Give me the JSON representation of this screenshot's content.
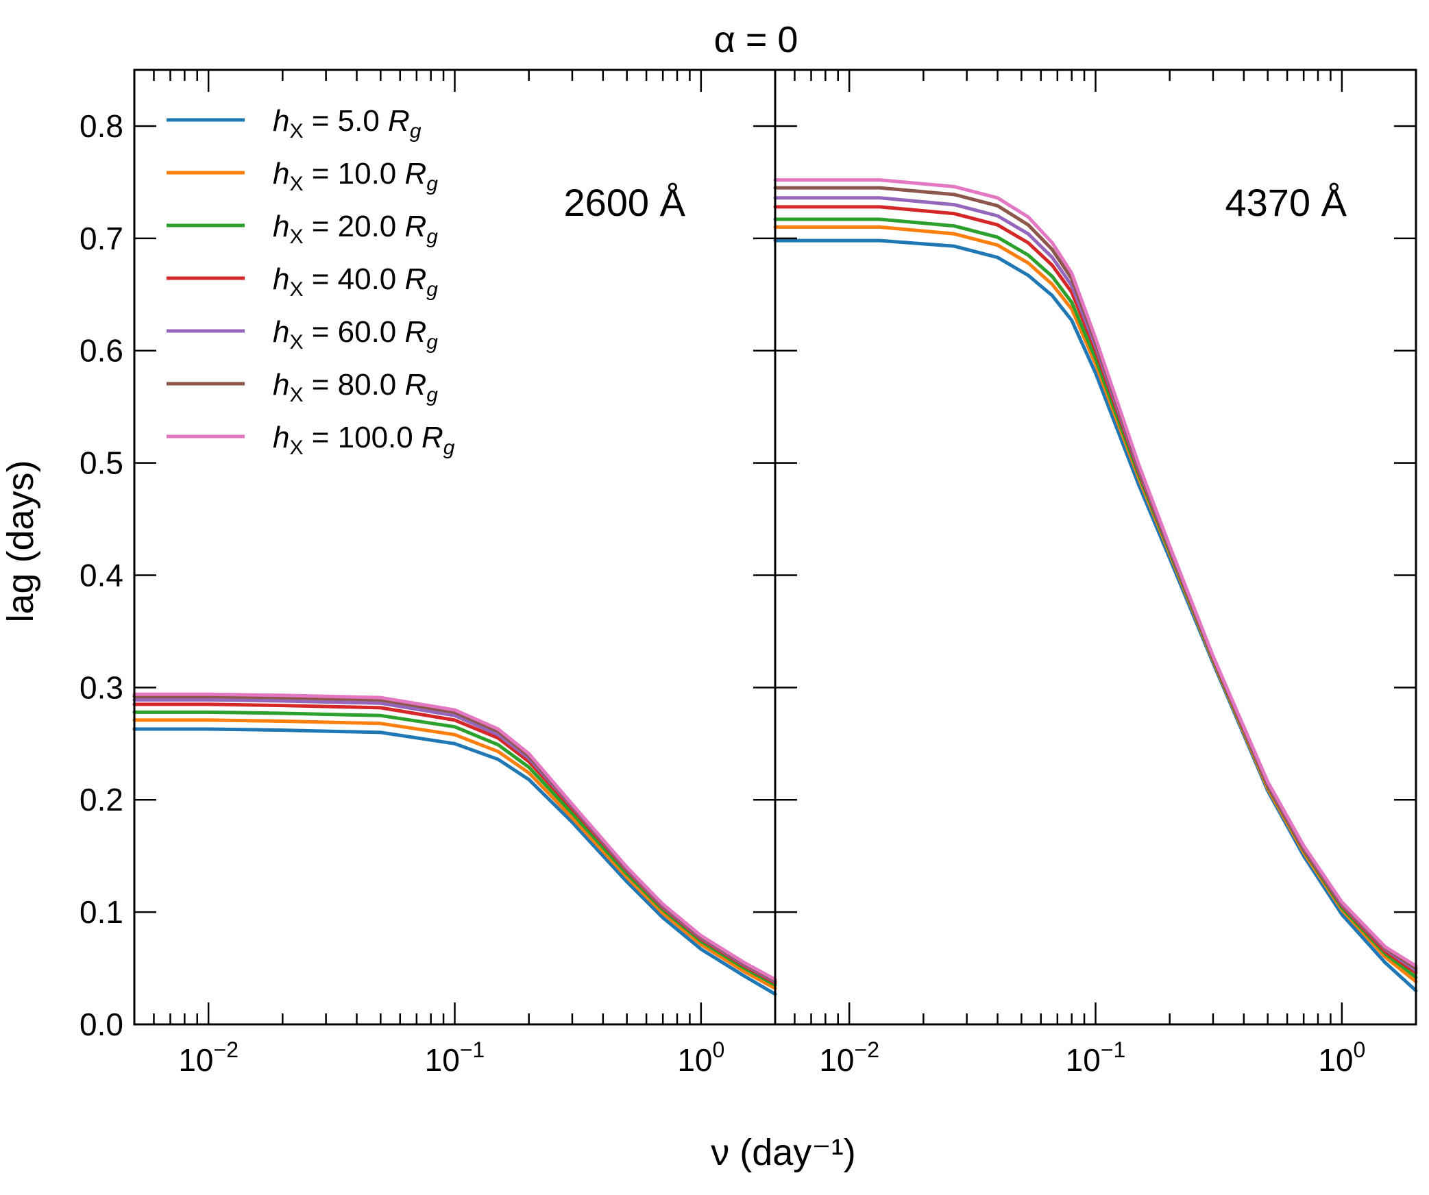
{
  "chart_data": [
    {
      "type": "line",
      "panel": "left",
      "panel_label": "2600 Å",
      "xscale": "log",
      "xlim": [
        0.005,
        2.0
      ],
      "ylim": [
        0.0,
        0.85
      ],
      "x": [
        0.005,
        0.01,
        0.02,
        0.05,
        0.1,
        0.15,
        0.2,
        0.3,
        0.5,
        0.7,
        1.0,
        1.5,
        2.0
      ],
      "series": [
        {
          "name": "h_X = 5.0 R_g",
          "color": "#1f77b4",
          "values": [
            0.263,
            0.263,
            0.262,
            0.26,
            0.25,
            0.236,
            0.218,
            0.18,
            0.127,
            0.095,
            0.067,
            0.043,
            0.027
          ]
        },
        {
          "name": "h_X = 10.0 R_g",
          "color": "#ff7f0e",
          "values": [
            0.271,
            0.271,
            0.27,
            0.268,
            0.258,
            0.243,
            0.224,
            0.184,
            0.131,
            0.099,
            0.071,
            0.047,
            0.032
          ]
        },
        {
          "name": "h_X = 20.0 R_g",
          "color": "#2ca02c",
          "values": [
            0.278,
            0.278,
            0.277,
            0.275,
            0.265,
            0.249,
            0.229,
            0.188,
            0.134,
            0.102,
            0.074,
            0.05,
            0.035
          ]
        },
        {
          "name": "h_X = 40.0 R_g",
          "color": "#d62728",
          "values": [
            0.285,
            0.285,
            0.284,
            0.282,
            0.271,
            0.255,
            0.234,
            0.192,
            0.137,
            0.104,
            0.076,
            0.052,
            0.037
          ]
        },
        {
          "name": "h_X = 60.0 R_g",
          "color": "#9467bd",
          "values": [
            0.289,
            0.289,
            0.288,
            0.286,
            0.275,
            0.258,
            0.237,
            0.194,
            0.138,
            0.105,
            0.077,
            0.053,
            0.038
          ]
        },
        {
          "name": "h_X = 80.0 R_g",
          "color": "#8c564b",
          "values": [
            0.292,
            0.292,
            0.291,
            0.289,
            0.278,
            0.261,
            0.239,
            0.195,
            0.139,
            0.106,
            0.078,
            0.054,
            0.039
          ]
        },
        {
          "name": "h_X = 100.0 R_g",
          "color": "#e377c2",
          "values": [
            0.294,
            0.294,
            0.293,
            0.291,
            0.28,
            0.263,
            0.241,
            0.196,
            0.14,
            0.107,
            0.079,
            0.055,
            0.04
          ]
        }
      ]
    },
    {
      "type": "line",
      "panel": "right",
      "panel_label": "4370 Å",
      "xscale": "log",
      "xlim": [
        0.005,
        2.0
      ],
      "ylim": [
        0.0,
        0.85
      ],
      "x": [
        0.005,
        0.0133,
        0.0267,
        0.04,
        0.0533,
        0.0667,
        0.08,
        0.1,
        0.15,
        0.2,
        0.3,
        0.5,
        0.7,
        1.0,
        1.5,
        2.0
      ],
      "series": [
        {
          "name": "h_X = 5.0 R_g",
          "color": "#1f77b4",
          "values": [
            0.698,
            0.698,
            0.693,
            0.683,
            0.667,
            0.649,
            0.627,
            0.58,
            0.48,
            0.415,
            0.322,
            0.208,
            0.15,
            0.098,
            0.055,
            0.03
          ]
        },
        {
          "name": "h_X = 10.0 R_g",
          "color": "#ff7f0e",
          "values": [
            0.71,
            0.71,
            0.704,
            0.694,
            0.678,
            0.659,
            0.637,
            0.588,
            0.486,
            0.419,
            0.324,
            0.21,
            0.153,
            0.102,
            0.06,
            0.038
          ]
        },
        {
          "name": "h_X = 20.0 R_g",
          "color": "#2ca02c",
          "values": [
            0.717,
            0.717,
            0.711,
            0.701,
            0.685,
            0.666,
            0.643,
            0.593,
            0.489,
            0.421,
            0.325,
            0.212,
            0.155,
            0.104,
            0.063,
            0.042
          ]
        },
        {
          "name": "h_X = 40.0 R_g",
          "color": "#d62728",
          "values": [
            0.728,
            0.728,
            0.722,
            0.712,
            0.696,
            0.676,
            0.652,
            0.6,
            0.492,
            0.423,
            0.326,
            0.213,
            0.156,
            0.106,
            0.065,
            0.046
          ]
        },
        {
          "name": "h_X = 60.0 R_g",
          "color": "#9467bd",
          "values": [
            0.736,
            0.736,
            0.73,
            0.72,
            0.704,
            0.683,
            0.658,
            0.604,
            0.494,
            0.424,
            0.327,
            0.214,
            0.157,
            0.107,
            0.067,
            0.048
          ]
        },
        {
          "name": "h_X = 80.0 R_g",
          "color": "#8c564b",
          "values": [
            0.745,
            0.745,
            0.739,
            0.729,
            0.712,
            0.69,
            0.664,
            0.608,
            0.496,
            0.425,
            0.327,
            0.215,
            0.158,
            0.108,
            0.068,
            0.05
          ]
        },
        {
          "name": "h_X = 100.0 R_g",
          "color": "#e377c2",
          "values": [
            0.752,
            0.752,
            0.746,
            0.736,
            0.719,
            0.696,
            0.669,
            0.611,
            0.498,
            0.426,
            0.328,
            0.216,
            0.159,
            0.109,
            0.069,
            0.052
          ]
        }
      ]
    }
  ],
  "figure": {
    "title": "α = 0",
    "xlabel": "ν (day⁻¹)",
    "ylabel": "lag (days)",
    "y_ticks": [
      0.0,
      0.1,
      0.2,
      0.3,
      0.4,
      0.5,
      0.6,
      0.7,
      0.8
    ],
    "y_tick_labels": [
      "0.0",
      "0.1",
      "0.2",
      "0.3",
      "0.4",
      "0.5",
      "0.6",
      "0.7",
      "0.8"
    ],
    "x_major_ticks": [
      0.01,
      0.1,
      1.0
    ],
    "x_tick_labels": [
      {
        "base": "10",
        "exp": "−2"
      },
      {
        "base": "10",
        "exp": "−1"
      },
      {
        "base": "10",
        "exp": "0"
      }
    ],
    "legend_location": "upper-left",
    "legend": [
      {
        "sub": "X",
        "eq": " = 5.0 ",
        "r": "R",
        "rsub": "g",
        "color": "#1f77b4"
      },
      {
        "sub": "X",
        "eq": " = 10.0 ",
        "r": "R",
        "rsub": "g",
        "color": "#ff7f0e"
      },
      {
        "sub": "X",
        "eq": " = 20.0 ",
        "r": "R",
        "rsub": "g",
        "color": "#2ca02c"
      },
      {
        "sub": "X",
        "eq": " = 40.0 ",
        "r": "R",
        "rsub": "g",
        "color": "#d62728"
      },
      {
        "sub": "X",
        "eq": " = 60.0 ",
        "r": "R",
        "rsub": "g",
        "color": "#9467bd"
      },
      {
        "sub": "X",
        "eq": " = 80.0 ",
        "r": "R",
        "rsub": "g",
        "color": "#8c564b"
      },
      {
        "sub": "X",
        "eq": " = 100.0 ",
        "r": "R",
        "rsub": "g",
        "color": "#e377c2"
      }
    ]
  }
}
